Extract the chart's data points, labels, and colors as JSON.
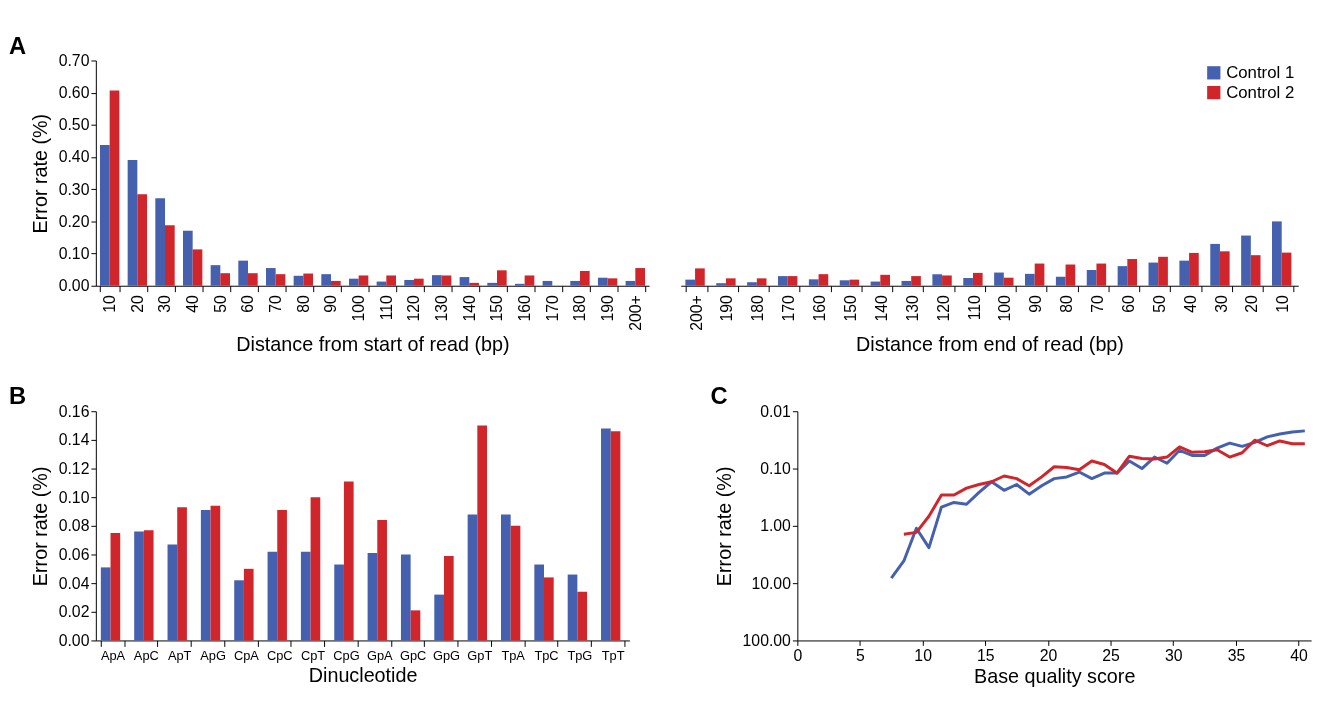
{
  "chart_data": [
    {
      "type": "bar",
      "annotations": [
        "A"
      ],
      "ylabel": "Error rate (%)",
      "xlabel": "Distance from start of read (bp)",
      "categories": [
        "10",
        "20",
        "30",
        "40",
        "50",
        "60",
        "70",
        "80",
        "90",
        "100",
        "110",
        "120",
        "130",
        "140",
        "150",
        "160",
        "170",
        "180",
        "190",
        "200+"
      ],
      "ylim": [
        0,
        0.7
      ],
      "yticks": [
        {
          "value": 0,
          "label": "0.00"
        },
        {
          "value": 0.1,
          "label": "0.10"
        },
        {
          "value": 0.2,
          "label": "0.20"
        },
        {
          "value": 0.3,
          "label": "0.30"
        },
        {
          "value": 0.4,
          "label": "0.40"
        },
        {
          "value": 0.5,
          "label": "0.50"
        },
        {
          "value": 0.6,
          "label": "0.60"
        },
        {
          "value": 0.7,
          "label": "0.70"
        }
      ],
      "series": [
        {
          "color": "#4560ae",
          "values": [
            0.437,
            0.391,
            0.272,
            0.171,
            0.064,
            0.078,
            0.055,
            0.031,
            0.036,
            0.022,
            0.013,
            0.018,
            0.033,
            0.027,
            0.009,
            0.006,
            0.015,
            0.015,
            0.025,
            0.015
          ]
        },
        {
          "color": "#d0262b",
          "values": [
            0.607,
            0.284,
            0.188,
            0.113,
            0.039,
            0.039,
            0.036,
            0.038,
            0.015,
            0.032,
            0.032,
            0.022,
            0.032,
            0.009,
            0.048,
            0.032,
            null,
            0.046,
            0.023,
            0.055
          ]
        }
      ]
    },
    {
      "type": "bar",
      "xlabel": "Distance from end of read (bp)",
      "categories": [
        "200+",
        "190",
        "180",
        "170",
        "160",
        "150",
        "140",
        "130",
        "120",
        "110",
        "100",
        "90",
        "80",
        "70",
        "60",
        "50",
        "40",
        "30",
        "20",
        "10"
      ],
      "ylim": [
        0,
        0.7
      ],
      "tick_labels": "x",
      "legend": "top right",
      "series": [
        {
          "name": "Control 1",
          "color": "#4560ae",
          "values": [
            0.019,
            0.008,
            0.011,
            0.03,
            0.02,
            0.017,
            0.013,
            0.015,
            0.036,
            0.024,
            0.041,
            0.037,
            0.028,
            0.049,
            0.061,
            0.072,
            0.078,
            0.13,
            0.156,
            0.2
          ]
        },
        {
          "name": "Control 2",
          "color": "#d0262b",
          "values": [
            0.054,
            0.023,
            0.023,
            0.03,
            0.036,
            0.019,
            0.034,
            0.03,
            0.032,
            0.04,
            0.025,
            0.069,
            0.066,
            0.069,
            0.083,
            0.09,
            0.102,
            0.107,
            0.095,
            0.103
          ]
        }
      ]
    },
    {
      "type": "bar",
      "annotations": [
        "B"
      ],
      "ylabel": "Error rate (%)",
      "xlabel": "Dinucleotide",
      "categories": [
        "ApA",
        "ApC",
        "ApT",
        "ApG",
        "CpA",
        "CpC",
        "CpT",
        "CpG",
        "GpA",
        "GpC",
        "GpG",
        "GpT",
        "TpA",
        "TpC",
        "TpG",
        "TpT"
      ],
      "ylim": [
        0,
        0.16
      ],
      "yticks": [
        {
          "value": 0,
          "label": "0.00"
        },
        {
          "value": 0.02,
          "label": "0.02"
        },
        {
          "value": 0.04,
          "label": "0.04"
        },
        {
          "value": 0.06,
          "label": "0.06"
        },
        {
          "value": 0.08,
          "label": "0.08"
        },
        {
          "value": 0.1,
          "label": "0.10"
        },
        {
          "value": 0.12,
          "label": "0.12"
        },
        {
          "value": 0.14,
          "label": "0.14"
        },
        {
          "value": 0.16,
          "label": "0.16"
        }
      ],
      "series": [
        {
          "color": "#4560ae",
          "values": [
            0.051,
            0.076,
            0.067,
            0.091,
            0.042,
            0.062,
            0.062,
            0.053,
            0.061,
            0.06,
            0.032,
            0.088,
            0.088,
            0.053,
            0.046,
            0.148
          ]
        },
        {
          "color": "#d0262b",
          "values": [
            0.075,
            0.077,
            0.093,
            0.094,
            0.05,
            0.091,
            0.1,
            0.111,
            0.084,
            0.021,
            0.059,
            0.15,
            0.08,
            0.044,
            0.034,
            0.146
          ]
        }
      ]
    },
    {
      "type": "line",
      "annotations": [
        "C"
      ],
      "ylabel": "Error rate (%)",
      "xlabel": "Base quality score",
      "log": "y",
      "xlim": [
        0,
        41
      ],
      "xticks": [
        0,
        5,
        10,
        15,
        20,
        25,
        30,
        35,
        40
      ],
      "ylim": [
        100,
        0.01
      ],
      "yticks": [
        0.01,
        {
          "value": 0.1,
          "label": "0.10"
        },
        {
          "value": 1,
          "label": "1.00"
        },
        {
          "value": 10,
          "label": "10.00"
        },
        {
          "value": 100,
          "label": "100.00"
        }
      ],
      "series": [
        {
          "color": "#4560ae",
          "x": [
            7.5,
            8.5,
            9.5,
            10.5,
            11.5,
            12.5,
            13.5,
            14.5,
            15.5,
            16.5,
            17.5,
            18.5,
            19.5,
            20.5,
            21.5,
            22.5,
            23.5,
            24.5,
            25.5,
            26.5,
            27.5,
            28.5,
            29.5,
            30.5,
            31.5,
            32.5,
            33.5,
            34.5,
            35.5,
            36.5,
            37.5,
            38.5,
            39.5,
            40.5
          ],
          "values": [
            8.2,
            4.1,
            1.1,
            2.4,
            0.47,
            0.39,
            0.42,
            0.26,
            0.17,
            0.24,
            0.19,
            0.28,
            0.2,
            0.15,
            0.14,
            0.115,
            0.15,
            0.12,
            0.12,
            0.074,
            0.1,
            0.063,
            0.081,
            0.048,
            0.059,
            0.059,
            0.044,
            0.036,
            0.041,
            0.035,
            0.028,
            0.025,
            0.023,
            0.022
          ]
        },
        {
          "color": "#d0262b",
          "x": [
            8.5,
            9.5,
            10.5,
            11.5,
            12.5,
            13.5,
            14.5,
            15.5,
            16.5,
            17.5,
            18.5,
            19.5,
            20.5,
            21.5,
            22.5,
            23.5,
            24.5,
            25.5,
            26.5,
            27.5,
            28.5,
            29.5,
            30.5,
            31.5,
            32.5,
            33.5,
            34.5,
            35.5,
            36.5,
            37.5,
            38.5,
            39.5,
            40.5
          ],
          "values": [
            1.4,
            1.3,
            0.68,
            0.29,
            0.29,
            0.22,
            0.19,
            0.17,
            0.135,
            0.15,
            0.2,
            0.14,
            0.093,
            0.096,
            0.105,
            0.074,
            0.085,
            0.12,
            0.061,
            0.067,
            0.068,
            0.063,
            0.042,
            0.052,
            0.051,
            0.047,
            0.063,
            0.053,
            0.032,
            0.04,
            0.033,
            0.037,
            0.037
          ]
        }
      ]
    }
  ]
}
